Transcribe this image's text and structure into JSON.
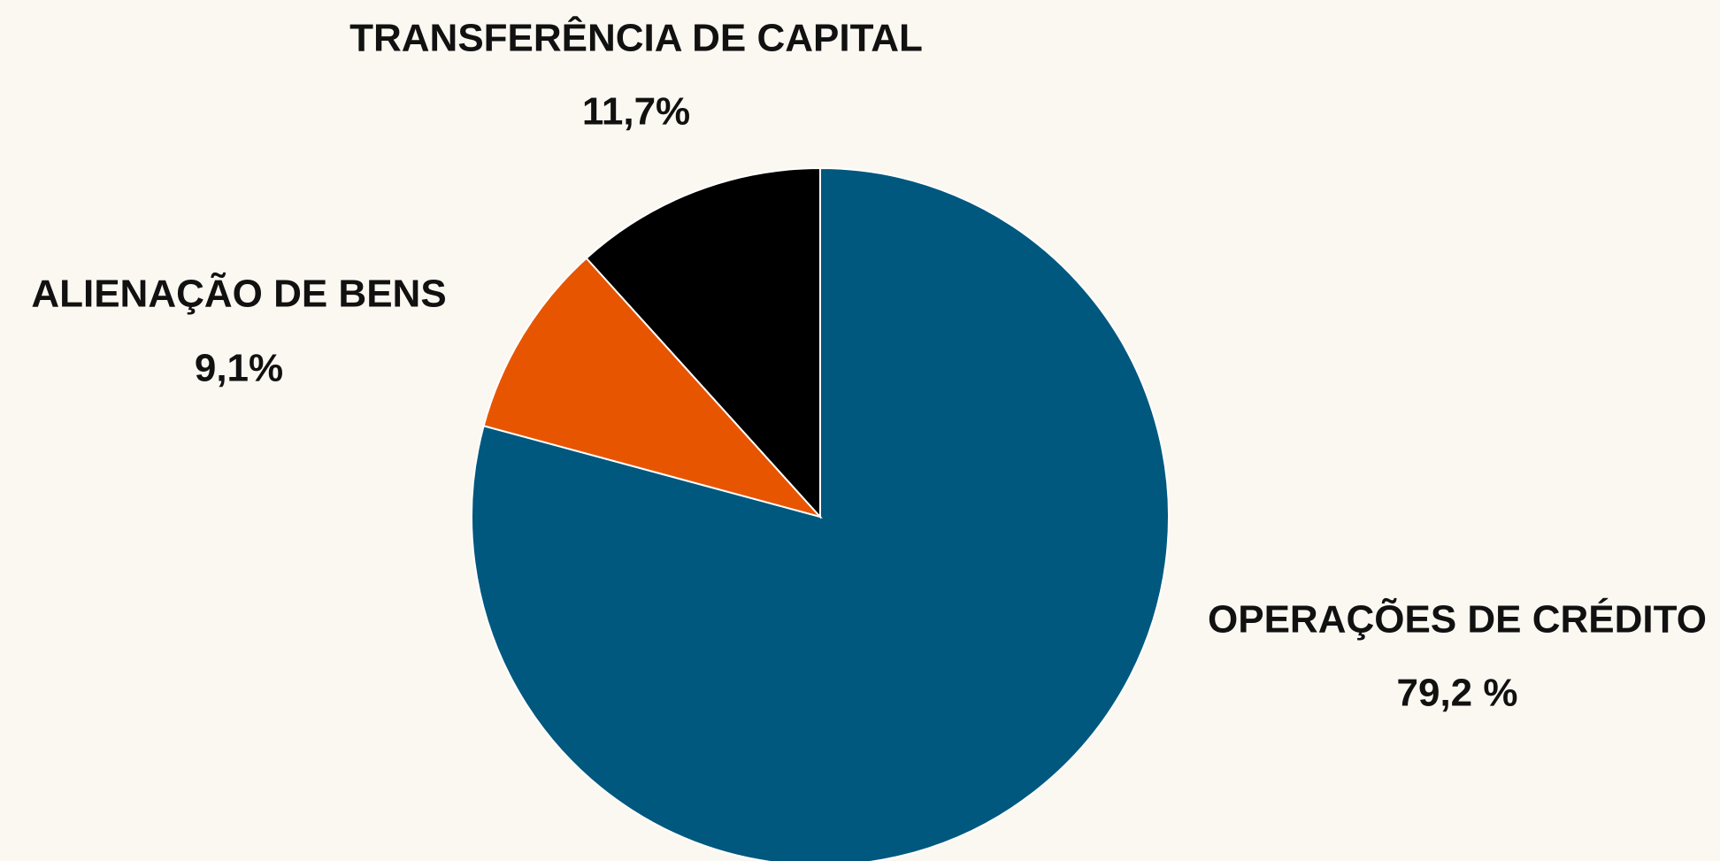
{
  "chart_data": {
    "type": "pie",
    "categories": [
      "OPERAÇÕES DE CRÉDITO",
      "ALIENAÇÃO DE BENS",
      "TRANSFERÊNCIA DE CAPITAL"
    ],
    "values": [
      79.2,
      9.1,
      11.7
    ],
    "value_labels": [
      "79,2 %",
      "9,1%",
      "11,7%"
    ],
    "colors": [
      "#00587f",
      "#e85500",
      "#000000"
    ]
  }
}
